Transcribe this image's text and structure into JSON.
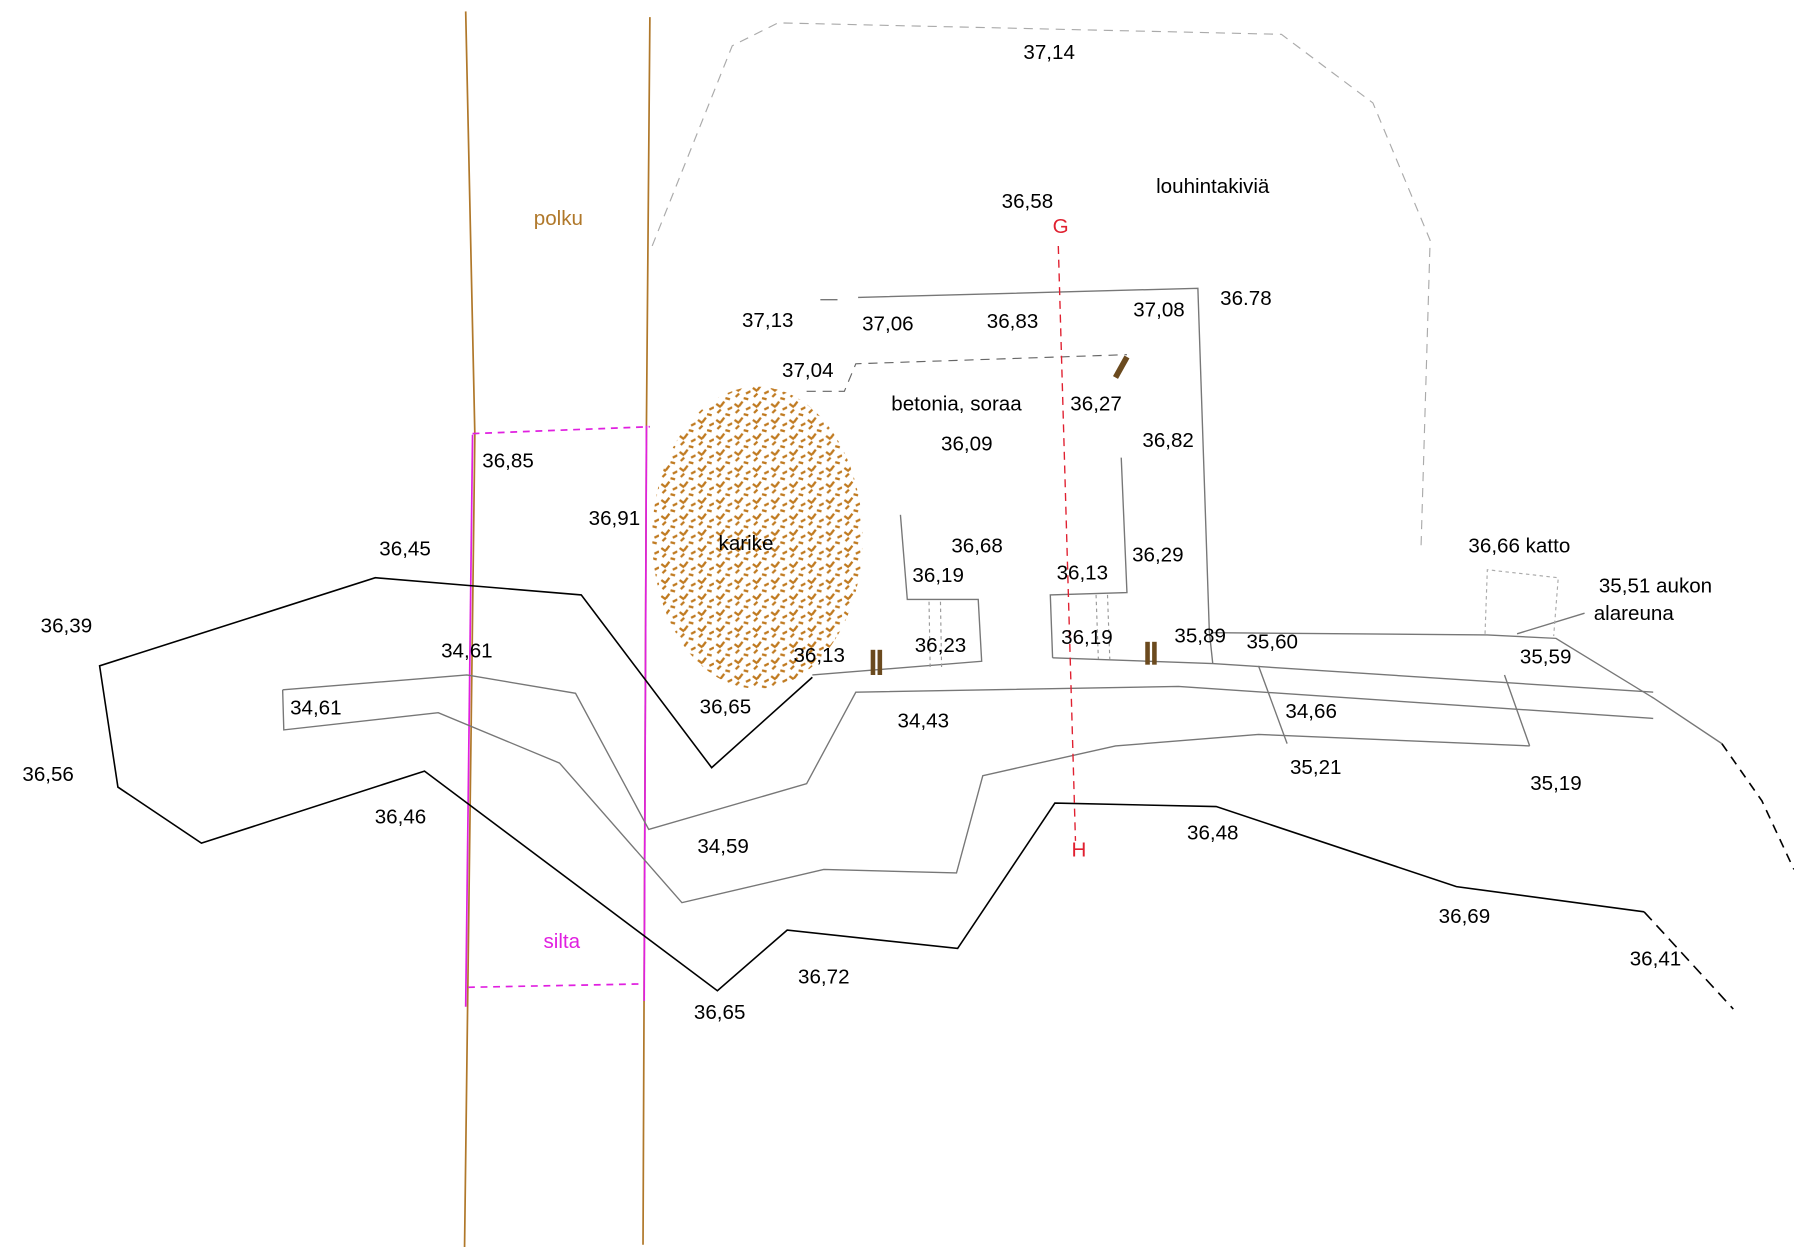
{
  "labels": [
    "37,14",
    "louhintakiviä",
    "36,58",
    "G",
    "polku",
    "37,13",
    "37,06",
    "36,83",
    "37,08",
    "36.78",
    "37,04",
    "betonia, soraa",
    "36,27",
    "36,09",
    "36,82",
    "36,85",
    "36,91",
    "karike",
    "36,68",
    "36,29",
    "36,45",
    "36,19",
    "36,13",
    "36,66 katto",
    "35,51 aukon",
    "alareuna",
    "36,39",
    "34,61",
    "36,13",
    "36,23",
    "36,19",
    "35,89",
    "35,60",
    "35,59",
    "34,61",
    "36,65",
    "34,43",
    "34,66",
    "36,56",
    "35,21",
    "35,19",
    "36,46",
    "36,48",
    "H",
    "34,59",
    "36,69",
    "silta",
    "36,72",
    "36,41",
    "36,65"
  ]
}
